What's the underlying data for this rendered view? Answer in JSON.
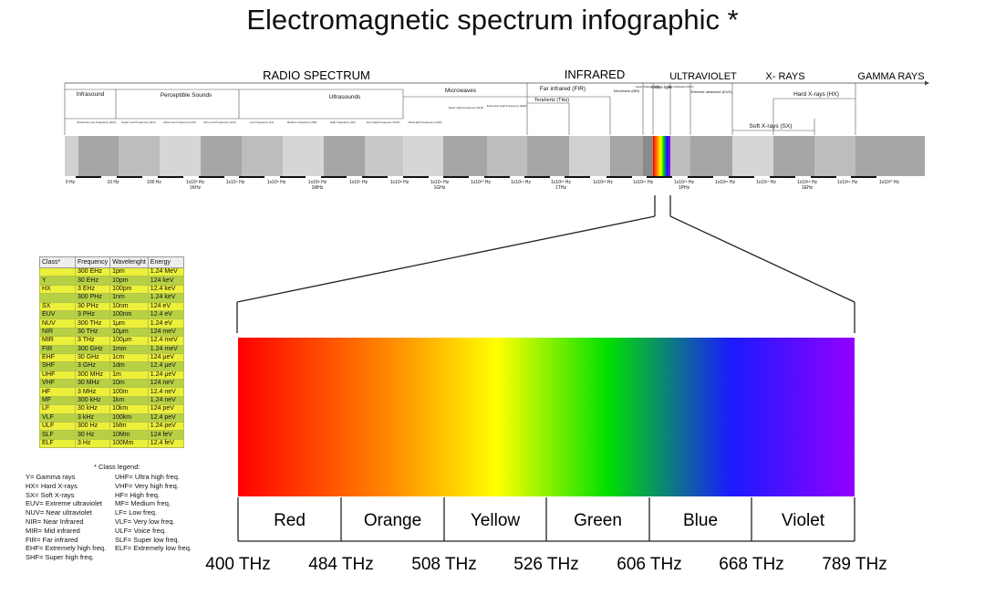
{
  "title": "Electromagnetic spectrum infographic *",
  "top_bands": [
    "RADIO SPECTRUM",
    "INFRARED",
    "ULTRAVIOLET",
    "X- RAYS",
    "GAMMA RAYS"
  ],
  "sub_bands": [
    "Infrasound",
    "Perceptible Sounds",
    "Ultrasounds",
    "Microwaves",
    "Far infrared (FIR)",
    "Terahertz (THz)",
    "Mid infrared (MIR)",
    "Near infrared (NIR)",
    "Visible light",
    "Near ultraviolet (NUV)",
    "Extreme ultraviolet (EUV)",
    "Hard X-rays (HX)",
    "Soft X-rays (SX)"
  ],
  "small_bands": [
    "Extremely Low Frequency (ELF)",
    "Super Low Frequency (SLF)",
    "Ultra Low Frequency (ULF)",
    "Very Low Frequency (VLF)",
    "Low Frequency (LF)",
    "Medium Frequency (MF)",
    "High Frequency (HF)",
    "Very High Frequency (VHF)",
    "Ultra High Frequency (UHF)",
    "Super High Frequency (SHF)",
    "Extremely High Frequency (EHF)"
  ],
  "ruler_labels": [
    {
      "main": "0 Hz",
      "sub": ""
    },
    {
      "main": "10 Hz",
      "sub": ""
    },
    {
      "main": "100 Hz",
      "sub": ""
    },
    {
      "main": "1x10³ Hz",
      "sub": "1KHz"
    },
    {
      "main": "1x10⁴ Hz",
      "sub": ""
    },
    {
      "main": "1x10⁵ Hz",
      "sub": ""
    },
    {
      "main": "1x10⁶ Hz",
      "sub": "1MHz"
    },
    {
      "main": "1x10⁷ Hz",
      "sub": ""
    },
    {
      "main": "1x10⁸ Hz",
      "sub": ""
    },
    {
      "main": "1x10⁹ Hz",
      "sub": "1GHz"
    },
    {
      "main": "1x10¹⁰ Hz",
      "sub": ""
    },
    {
      "main": "1x10¹¹ Hz",
      "sub": ""
    },
    {
      "main": "1x10¹² Hz",
      "sub": "1THz"
    },
    {
      "main": "1x10¹³ Hz",
      "sub": ""
    },
    {
      "main": "1x10¹⁴ Hz",
      "sub": ""
    },
    {
      "main": "1x10¹⁵ Hz",
      "sub": "1PHz"
    },
    {
      "main": "1x10¹⁶ Hz",
      "sub": ""
    },
    {
      "main": "1x10¹⁷ Hz",
      "sub": ""
    },
    {
      "main": "1x10¹⁸ Hz",
      "sub": "1EHz"
    },
    {
      "main": "1x10¹⁹ Hz",
      "sub": ""
    },
    {
      "main": "1x10²⁰ Hz",
      "sub": ""
    }
  ],
  "table": {
    "headers": [
      "Class*",
      "Frequency",
      "Wavelenght",
      "Energy"
    ],
    "rows": [
      [
        "",
        "300 EHz",
        "1pm",
        "1.24 MeV"
      ],
      [
        "Y",
        "30 EHz",
        "10pm",
        "124 keV"
      ],
      [
        "HX",
        "3 EHz",
        "100pm",
        "12.4 keV"
      ],
      [
        "",
        "300 PHz",
        "1nm",
        "1.24 keV"
      ],
      [
        "SX",
        "30 PHz",
        "10nm",
        "124 eV"
      ],
      [
        "EUV",
        "3 PHz",
        "100nm",
        "12.4 eV"
      ],
      [
        "NUV",
        "300 THz",
        "1μm",
        "1.24 eV"
      ],
      [
        "NIR",
        "30 THz",
        "10μm",
        "124 meV"
      ],
      [
        "MIR",
        "3 THz",
        "100μm",
        "12.4 meV"
      ],
      [
        "FIR",
        "300 GHz",
        "1mm",
        "1.24 meV"
      ],
      [
        "EHF",
        "30 GHz",
        "1cm",
        "124 μeV"
      ],
      [
        "SHF",
        "3 GHz",
        "1dm",
        "12.4 μeV"
      ],
      [
        "UHF",
        "300 MHz",
        "1m",
        "1.24 μeV"
      ],
      [
        "VHF",
        "30 MHz",
        "10m",
        "124 neV"
      ],
      [
        "HF",
        "3 MHz",
        "100m",
        "12.4 neV"
      ],
      [
        "MF",
        "300 kHz",
        "1km",
        "1.24 neV"
      ],
      [
        "LF",
        "30 kHz",
        "10km",
        "124 peV"
      ],
      [
        "VLF",
        "3 kHz",
        "100km",
        "12.4 peV"
      ],
      [
        "ULF",
        "300 Hz",
        "1Mm",
        "1.24 peV"
      ],
      [
        "SLF",
        "30 Hz",
        "10Mm",
        "124 feV"
      ],
      [
        "ELF",
        "3 Hz",
        "100Mm",
        "12.4 feV"
      ]
    ]
  },
  "legend_title": "* Class legend:",
  "legend_left": [
    "Y= Gamma rays",
    "HX= Hard X-rays",
    "SX= Soft X-rays",
    "EUV= Extreme ultraviolet",
    "NUV= Near ultraviolet",
    "NIR= Near Infrared",
    "MIR= Mid infrared",
    "FIR= Far infrared",
    "EHF= Extremely high freq.",
    "SHF= Super high freq."
  ],
  "legend_right": [
    "UHF= Ultra high freq.",
    "VHF= Very high freq.",
    "HF= High freq.",
    "MF= Medium freq.",
    "LF= Low freq.",
    "VLF= Very low freq.",
    "ULF= Voice freq.",
    "SLF= Super low freq.",
    "ELF= Extremely low freq."
  ],
  "visible": {
    "colors": [
      "Red",
      "Orange",
      "Yellow",
      "Green",
      "Blue",
      "Violet"
    ],
    "freqs": [
      "400 THz",
      "484 THz",
      "508 THz",
      "526 THz",
      "606 THz",
      "668 THz",
      "789 THz"
    ]
  },
  "palette": {
    "red": "#ff0000",
    "orange": "#ff8c00",
    "yellow": "#ffff00",
    "green": "#00e000",
    "blue": "#1a1aff",
    "violet": "#9400ff",
    "table_yellow": "#ecf03a",
    "table_green": "#b7d145"
  }
}
